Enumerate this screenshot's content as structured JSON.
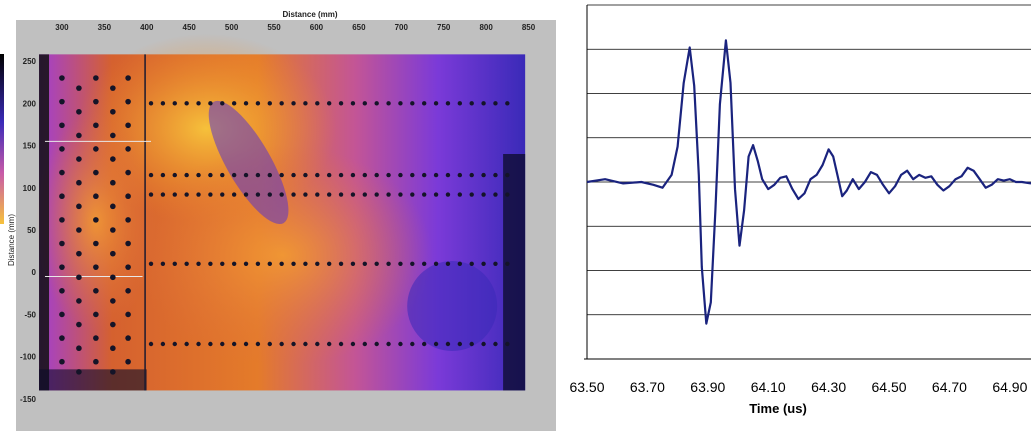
{
  "charts": {
    "cscan": {
      "type": "heatmap",
      "xlabel": "Distance (mm)",
      "ylabel": "Distance (mm)",
      "x_ticks": [
        "300",
        "350",
        "400",
        "450",
        "500",
        "550",
        "600",
        "650",
        "700",
        "750",
        "800",
        "850"
      ],
      "y_ticks": [
        "250",
        "200",
        "150",
        "100",
        "50",
        "0",
        "-50",
        "-100",
        "-150"
      ],
      "x_range": [
        260,
        880
      ],
      "y_range": [
        -175,
        275
      ],
      "panel_color": "#c0c0c0",
      "colormap": [
        "#0b0b2a",
        "#3a2ab8",
        "#6b2fd8",
        "#c85aa8",
        "#f08a2a",
        "#f6c23c"
      ],
      "rivet_rows_y": [
        200,
        115,
        92,
        10,
        -85
      ],
      "rivet_cols_x": [
        300,
        320,
        340,
        360,
        378
      ]
    },
    "waveform": {
      "type": "line",
      "xlabel": "Time (us)",
      "x_ticks": [
        "63.50",
        "63.70",
        "63.90",
        "64.10",
        "64.30",
        "64.50",
        "64.70",
        "64.90"
      ],
      "x_range": [
        63.5,
        64.97
      ],
      "y_range": [
        -1,
        1
      ],
      "y_grid_count": 9,
      "line_color": "#1a237e",
      "x": [
        63.5,
        63.56,
        63.62,
        63.68,
        63.72,
        63.75,
        63.78,
        63.8,
        63.82,
        63.84,
        63.855,
        63.87,
        63.88,
        63.895,
        63.91,
        63.925,
        63.94,
        63.96,
        63.975,
        63.99,
        64.005,
        64.02,
        64.035,
        64.05,
        64.065,
        64.08,
        64.1,
        64.12,
        64.14,
        64.16,
        64.18,
        64.2,
        64.22,
        64.24,
        64.26,
        64.28,
        64.3,
        64.315,
        64.33,
        64.345,
        64.36,
        64.38,
        64.4,
        64.42,
        64.44,
        64.46,
        64.48,
        64.5,
        64.52,
        64.54,
        64.56,
        64.58,
        64.6,
        64.62,
        64.64,
        64.66,
        64.68,
        64.7,
        64.72,
        64.74,
        64.76,
        64.78,
        64.8,
        64.82,
        64.84,
        64.86,
        64.88,
        64.9,
        64.92,
        64.94,
        64.97
      ],
      "values": [
        0,
        0.02,
        -0.01,
        0,
        -0.02,
        -0.04,
        0.05,
        0.25,
        0.7,
        0.95,
        0.68,
        0.05,
        -0.6,
        -1.0,
        -0.85,
        -0.2,
        0.55,
        1.0,
        0.7,
        -0.05,
        -0.45,
        -0.2,
        0.18,
        0.26,
        0.15,
        0.02,
        -0.05,
        -0.02,
        0.03,
        0.04,
        -0.05,
        -0.12,
        -0.08,
        0.02,
        0.05,
        0.12,
        0.23,
        0.18,
        0.04,
        -0.1,
        -0.06,
        0.02,
        -0.05,
        0.0,
        0.07,
        0.05,
        -0.02,
        -0.08,
        -0.03,
        0.05,
        0.08,
        0.02,
        0.05,
        0.03,
        0.04,
        -0.02,
        -0.06,
        -0.03,
        0.02,
        0.04,
        0.1,
        0.08,
        0.02,
        -0.04,
        -0.02,
        0.02,
        0.01,
        0.02,
        0.0,
        0.0,
        -0.01
      ]
    }
  }
}
